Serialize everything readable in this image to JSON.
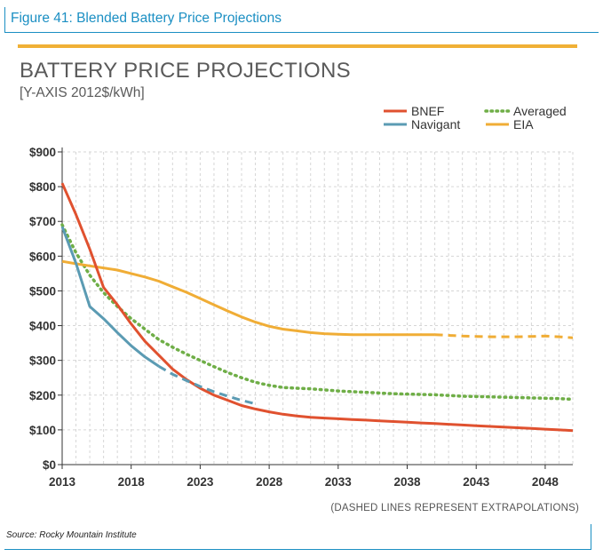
{
  "figure": {
    "title": "Figure 41: Blended Battery Price Projections",
    "source": "Source: Rocky Mountain Institute",
    "note": "(DASHED LINES REPRESENT EXTRAPOLATIONS)"
  },
  "colors": {
    "bnef": "#e0512f",
    "navigant": "#5b9bb3",
    "averaged": "#6fae47",
    "eia": "#f0ad36",
    "header_blue": "#1b8fc3",
    "rule_orange": "#f0b036"
  },
  "chart_data": {
    "type": "line",
    "title": "BATTERY PRICE PROJECTIONS",
    "subtitle": "[Y-AXIS 2012$/kWh]",
    "xlabel": "",
    "ylabel": "",
    "xlim": [
      2013,
      2050
    ],
    "ylim": [
      0,
      900
    ],
    "x_ticks": [
      "2013",
      "2018",
      "2023",
      "2028",
      "2033",
      "2038",
      "2043",
      "2048"
    ],
    "y_ticks": [
      "$0",
      "$100",
      "$200",
      "$300",
      "$400",
      "$500",
      "$600",
      "$700",
      "$800",
      "$900"
    ],
    "grid": true,
    "legend_position": "top-right",
    "series": [
      {
        "name": "BNEF",
        "style": "solid",
        "x": [
          2013,
          2014,
          2015,
          2016,
          2017,
          2018,
          2019,
          2020,
          2021,
          2022,
          2023,
          2024,
          2025,
          2026,
          2027,
          2028,
          2029,
          2030,
          2031,
          2032,
          2033,
          2034,
          2035,
          2036,
          2037,
          2038,
          2039,
          2040,
          2041,
          2042,
          2043,
          2044,
          2045,
          2046,
          2047,
          2048,
          2049,
          2050
        ],
        "y": [
          810,
          720,
          620,
          510,
          460,
          405,
          355,
          315,
          275,
          245,
          220,
          200,
          185,
          170,
          160,
          152,
          145,
          140,
          136,
          134,
          132,
          130,
          128,
          126,
          124,
          122,
          120,
          118,
          116,
          114,
          112,
          110,
          108,
          106,
          104,
          102,
          100,
          98
        ]
      },
      {
        "name": "Navigant",
        "style": "solid-then-dashed",
        "x": [
          2013,
          2014,
          2015,
          2016,
          2017,
          2018,
          2019,
          2020,
          2021,
          2022,
          2023,
          2024,
          2025,
          2026,
          2027
        ],
        "y": [
          685,
          580,
          455,
          420,
          380,
          342,
          310,
          283,
          260,
          242,
          225,
          210,
          197,
          185,
          175
        ]
      },
      {
        "name": "Averaged",
        "style": "dotted",
        "x": [
          2013,
          2014,
          2015,
          2016,
          2017,
          2018,
          2019,
          2020,
          2021,
          2022,
          2023,
          2024,
          2025,
          2026,
          2027,
          2028,
          2029,
          2030,
          2031,
          2032,
          2033,
          2034,
          2035,
          2036,
          2037,
          2038,
          2039,
          2040,
          2041,
          2042,
          2043,
          2044,
          2045,
          2046,
          2047,
          2048,
          2049,
          2050
        ],
        "y": [
          690,
          610,
          545,
          495,
          455,
          420,
          390,
          360,
          338,
          318,
          300,
          282,
          265,
          250,
          237,
          228,
          222,
          220,
          218,
          215,
          212,
          210,
          208,
          206,
          204,
          203,
          202,
          201,
          199,
          197,
          196,
          195,
          194,
          193,
          192,
          191,
          190,
          188
        ]
      },
      {
        "name": "EIA",
        "style": "solid-then-dashed",
        "x": [
          2013,
          2014,
          2015,
          2016,
          2017,
          2018,
          2019,
          2020,
          2021,
          2022,
          2023,
          2024,
          2025,
          2026,
          2027,
          2028,
          2029,
          2030,
          2031,
          2032,
          2033,
          2034,
          2035,
          2036,
          2037,
          2038,
          2039,
          2040,
          2041,
          2042,
          2043,
          2044,
          2045,
          2046,
          2047,
          2048,
          2049,
          2050
        ],
        "y": [
          585,
          578,
          572,
          566,
          560,
          550,
          540,
          528,
          512,
          496,
          478,
          460,
          442,
          425,
          410,
          398,
          390,
          385,
          380,
          377,
          375,
          374,
          374,
          374,
          374,
          374,
          374,
          374,
          372,
          370,
          369,
          368,
          368,
          368,
          369,
          370,
          368,
          365
        ]
      }
    ],
    "dashed_from": {
      "Navigant": 2020,
      "EIA": 2040
    }
  }
}
